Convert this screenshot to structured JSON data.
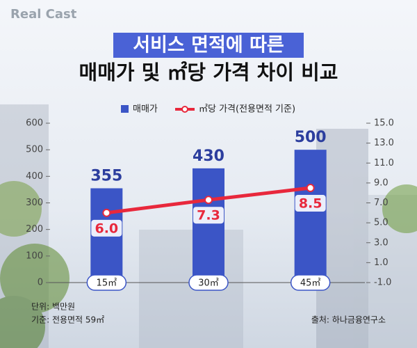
{
  "brand": "Real Cast",
  "chart_data": {
    "type": "bar",
    "title": "서비스 면적에 따른",
    "subtitle": "매매가 및 ㎡당 가격 차이 비교",
    "categories": [
      "15㎡",
      "30㎡",
      "45㎡"
    ],
    "series": [
      {
        "name": "매매가",
        "type": "bar",
        "color": "#3b55c6",
        "values": [
          355,
          430,
          500
        ]
      },
      {
        "name": "㎡당 가격(전용면적 기준)",
        "type": "line",
        "axis": "y2",
        "color": "#e8283c",
        "values": [
          6.0,
          7.3,
          8.5
        ],
        "value_labels": [
          "6.0",
          "7.3",
          "8.5"
        ]
      }
    ],
    "ylim": [
      0,
      600
    ],
    "yticks": [
      0,
      100,
      200,
      300,
      400,
      500,
      600
    ],
    "y2lim": [
      -1,
      15
    ],
    "y2ticks": [
      {
        "value": -1,
        "label": "-1.0"
      },
      {
        "value": 1,
        "label": "1.0"
      },
      {
        "value": 3,
        "label": "3.0"
      },
      {
        "value": 5,
        "label": "5.0"
      },
      {
        "value": 7,
        "label": "7.0"
      },
      {
        "value": 9,
        "label": "9.0"
      },
      {
        "value": 11,
        "label": "11.0"
      },
      {
        "value": 13,
        "label": "13.0"
      },
      {
        "value": 15,
        "label": "15.0"
      }
    ],
    "legend": "top",
    "notes": [
      "단위: 백만원",
      "기준: 전용면적 59㎡"
    ],
    "source": "출처: 하나금융연구소"
  }
}
